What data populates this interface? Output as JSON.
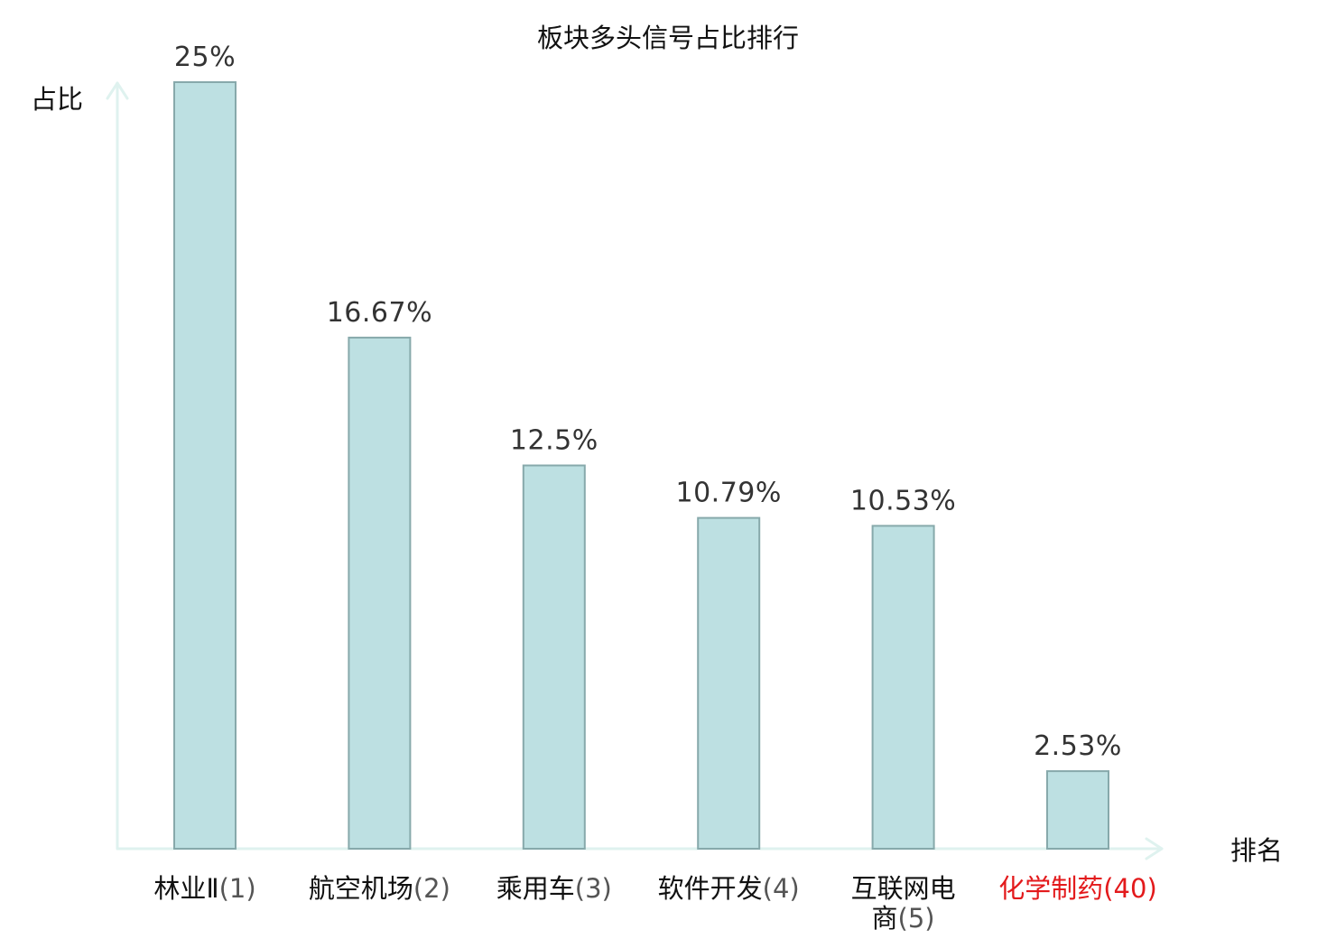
{
  "chart_data": {
    "type": "bar",
    "title": "板块多头信号占比排行",
    "ylabel": "占比",
    "xlabel": "排名",
    "categories": [
      {
        "name_lines": [
          "林业Ⅱ"
        ],
        "rank": "(1)",
        "highlight": false
      },
      {
        "name_lines": [
          "航空机场"
        ],
        "rank": "(2)",
        "highlight": false
      },
      {
        "name_lines": [
          "乘用车"
        ],
        "rank": "(3)",
        "highlight": false
      },
      {
        "name_lines": [
          "软件开发"
        ],
        "rank": "(4)",
        "highlight": false
      },
      {
        "name_lines": [
          "互联网电",
          "商"
        ],
        "rank": "(5)",
        "highlight": false
      },
      {
        "name_lines": [
          "化学制药"
        ],
        "rank": "(40)",
        "highlight": true
      }
    ],
    "values": [
      25,
      16.67,
      12.5,
      10.79,
      10.53,
      2.53
    ],
    "value_labels": [
      "25%",
      "16.67%",
      "12.5%",
      "10.79%",
      "10.53%",
      "2.53%"
    ],
    "ylim": [
      0,
      25
    ],
    "grid": false,
    "legend": "none",
    "colors": {
      "bar_fill": "#bde0e2",
      "bar_stroke": "#87a9ab",
      "axis": "#dff2ef",
      "highlight_text": "#e31a1c"
    }
  }
}
